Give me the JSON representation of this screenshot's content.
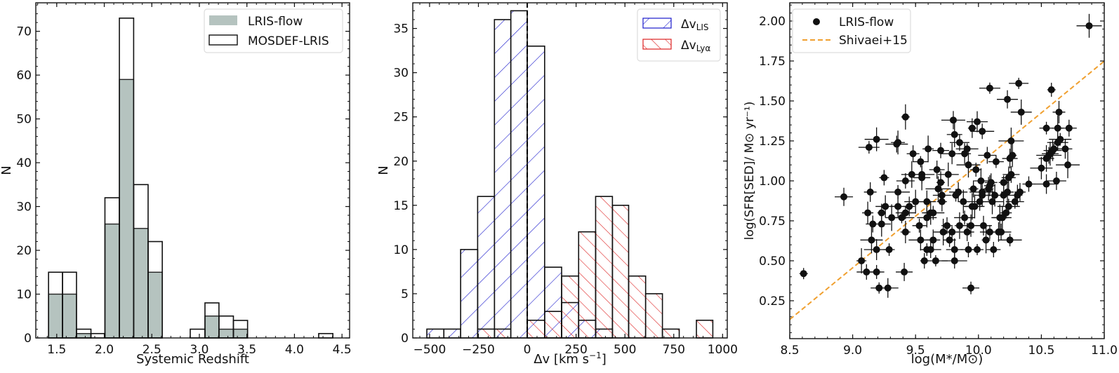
{
  "figure": {
    "panels": [
      "redshift-histogram",
      "velocity-histogram",
      "sfr-mass-scatter"
    ]
  },
  "chart_data": [
    {
      "id": "redshift-histogram",
      "type": "bar",
      "subtype": "histogram",
      "title": "",
      "xlabel": "Systemic Redshift",
      "ylabel": "N",
      "xlim": [
        1.28,
        4.58
      ],
      "ylim": [
        0,
        76.5
      ],
      "xticks": [
        1.5,
        2.0,
        2.5,
        3.0,
        3.5,
        4.0,
        4.5
      ],
      "xtick_labels": [
        "1.5",
        "2.0",
        "2.5",
        "3.0",
        "3.5",
        "4.0",
        "4.5"
      ],
      "yticks": [
        0,
        10,
        20,
        30,
        40,
        50,
        60,
        70
      ],
      "ytick_labels": [
        "0",
        "10",
        "20",
        "30",
        "40",
        "50",
        "60",
        "70"
      ],
      "legend": {
        "position": "upper right",
        "entries": [
          "LRIS-flow",
          "MOSDEF-LRIS"
        ]
      },
      "grid": false,
      "series": [
        {
          "name": "LRIS-flow",
          "style": "filled",
          "color": "#b5c3bf",
          "bins": [
            {
              "x0": 1.414,
              "x1": 1.561,
              "n": 10
            },
            {
              "x0": 1.561,
              "x1": 1.708,
              "n": 10
            },
            {
              "x0": 1.708,
              "x1": 1.86,
              "n": 1
            },
            {
              "x0": 1.86,
              "x1": 2.007,
              "n": 0
            },
            {
              "x0": 2.007,
              "x1": 2.159,
              "n": 26
            },
            {
              "x0": 2.159,
              "x1": 2.309,
              "n": 59
            },
            {
              "x0": 2.309,
              "x1": 2.461,
              "n": 25
            },
            {
              "x0": 2.461,
              "x1": 2.61,
              "n": 15
            },
            {
              "x0": 3.059,
              "x1": 3.206,
              "n": 5
            },
            {
              "x0": 3.206,
              "x1": 3.358,
              "n": 2
            },
            {
              "x0": 3.358,
              "x1": 3.507,
              "n": 2
            }
          ]
        },
        {
          "name": "MOSDEF-LRIS",
          "style": "outline",
          "color": "#000000",
          "bins": [
            {
              "x0": 1.414,
              "x1": 1.561,
              "n": 15
            },
            {
              "x0": 1.561,
              "x1": 1.708,
              "n": 15
            },
            {
              "x0": 1.708,
              "x1": 1.86,
              "n": 2
            },
            {
              "x0": 1.86,
              "x1": 2.007,
              "n": 1
            },
            {
              "x0": 2.007,
              "x1": 2.159,
              "n": 32
            },
            {
              "x0": 2.159,
              "x1": 2.309,
              "n": 73
            },
            {
              "x0": 2.309,
              "x1": 2.461,
              "n": 35
            },
            {
              "x0": 2.461,
              "x1": 2.61,
              "n": 22
            },
            {
              "x0": 2.904,
              "x1": 3.059,
              "n": 2
            },
            {
              "x0": 3.059,
              "x1": 3.206,
              "n": 8
            },
            {
              "x0": 3.206,
              "x1": 3.358,
              "n": 5
            },
            {
              "x0": 3.358,
              "x1": 3.507,
              "n": 4
            },
            {
              "x0": 4.255,
              "x1": 4.404,
              "n": 1
            }
          ]
        }
      ]
    },
    {
      "id": "velocity-histogram",
      "type": "bar",
      "subtype": "histogram",
      "title": "",
      "xlabel": "Δv [km s⁻¹]",
      "ylabel": "N",
      "xlim": [
        -586,
        1024
      ],
      "ylim": [
        0,
        37.9
      ],
      "xticks": [
        -500,
        -250,
        0,
        250,
        500,
        750,
        1000
      ],
      "xtick_labels": [
        "−500",
        "−250",
        "0",
        "250",
        "500",
        "750",
        "1000"
      ],
      "yticks": [
        0,
        5,
        10,
        15,
        20,
        25,
        30,
        35
      ],
      "ytick_labels": [
        "0",
        "5",
        "10",
        "15",
        "20",
        "25",
        "30",
        "35"
      ],
      "vline": {
        "x": 0,
        "style": "dashed",
        "color": "#000000"
      },
      "legend": {
        "position": "upper right",
        "entries": [
          "ΔvLIS",
          "ΔvLyα"
        ]
      },
      "grid": false,
      "series": [
        {
          "name": "ΔvLIS",
          "label_main": "Δv",
          "label_sub": "LIS",
          "hatch": "\\",
          "color": "#1a1acc",
          "bins": [
            {
              "x0": -514,
              "x1": -427,
              "n": 1
            },
            {
              "x0": -427,
              "x1": -341,
              "n": 1
            },
            {
              "x0": -341,
              "x1": -254,
              "n": 10
            },
            {
              "x0": -254,
              "x1": -168,
              "n": 16
            },
            {
              "x0": -168,
              "x1": -84,
              "n": 36
            },
            {
              "x0": -84,
              "x1": 0,
              "n": 37
            },
            {
              "x0": 0,
              "x1": 89,
              "n": 33
            },
            {
              "x0": 89,
              "x1": 176,
              "n": 8
            },
            {
              "x0": 176,
              "x1": 263,
              "n": 4
            },
            {
              "x0": 263,
              "x1": 350,
              "n": 2
            },
            {
              "x0": 350,
              "x1": 436,
              "n": 1
            }
          ]
        },
        {
          "name": "ΔvLyα",
          "label_main": "Δv",
          "label_sub": "Lyα",
          "hatch": "/",
          "color": "#dd2222",
          "bins": [
            {
              "x0": -254,
              "x1": -168,
              "n": 1
            },
            {
              "x0": -168,
              "x1": -84,
              "n": 1
            },
            {
              "x0": 0,
              "x1": 89,
              "n": 2
            },
            {
              "x0": 89,
              "x1": 176,
              "n": 3
            },
            {
              "x0": 176,
              "x1": 263,
              "n": 7
            },
            {
              "x0": 263,
              "x1": 350,
              "n": 12
            },
            {
              "x0": 350,
              "x1": 436,
              "n": 16
            },
            {
              "x0": 436,
              "x1": 519,
              "n": 15
            },
            {
              "x0": 519,
              "x1": 606,
              "n": 7
            },
            {
              "x0": 606,
              "x1": 692,
              "n": 5
            },
            {
              "x0": 692,
              "x1": 778,
              "n": 1
            },
            {
              "x0": 866,
              "x1": 950,
              "n": 2
            }
          ]
        }
      ]
    },
    {
      "id": "sfr-mass-scatter",
      "type": "scatter",
      "title": "",
      "xlabel": "log(M*/M⊙)",
      "ylabel": "log(SFR[SED]/ M⊙ yr⁻¹)",
      "xlim": [
        8.5,
        11.0
      ],
      "ylim": [
        0.013,
        2.114
      ],
      "xticks": [
        8.5,
        9.0,
        9.5,
        10.0,
        10.5,
        11.0
      ],
      "xtick_labels": [
        "8.5",
        "9.0",
        "9.5",
        "10.0",
        "10.5",
        "11.0"
      ],
      "yticks": [
        0.25,
        0.5,
        0.75,
        1.0,
        1.25,
        1.5,
        1.75,
        2.0
      ],
      "ytick_labels": [
        "0.25",
        "0.50",
        "0.75",
        "1.00",
        "1.25",
        "1.50",
        "1.75",
        "2.00"
      ],
      "legend": {
        "position": "upper left",
        "entries": [
          "LRIS-flow",
          "Shivaei+15"
        ]
      },
      "grid": false,
      "lines": [
        {
          "name": "Shivaei+15",
          "style": "dashed",
          "color": "#f0a030",
          "x": [
            8.5,
            11.0
          ],
          "y": [
            0.133,
            1.749
          ]
        }
      ],
      "series": [
        {
          "name": "LRIS-flow",
          "marker": "circle",
          "color": "#111111",
          "x": [
            8.61,
            8.93,
            9.07,
            9.11,
            9.12,
            9.13,
            9.14,
            9.15,
            9.16,
            9.19,
            9.19,
            9.19,
            9.21,
            9.23,
            9.23,
            9.25,
            9.26,
            9.29,
            9.28,
            9.31,
            9.35,
            9.36,
            9.36,
            9.36,
            9.39,
            9.41,
            9.42,
            9.42,
            9.42,
            9.42,
            9.45,
            9.47,
            9.48,
            9.5,
            9.53,
            9.54,
            9.54,
            9.55,
            9.55,
            9.57,
            9.59,
            9.59,
            9.59,
            9.6,
            9.62,
            9.62,
            9.64,
            9.64,
            9.66,
            9.67,
            9.68,
            9.7,
            9.7,
            9.71,
            9.71,
            9.72,
            9.75,
            9.76,
            9.77,
            9.79,
            9.79,
            9.8,
            9.81,
            9.81,
            9.81,
            9.82,
            9.84,
            9.85,
            9.85,
            9.88,
            9.89,
            9.89,
            9.91,
            9.91,
            9.92,
            9.92,
            9.94,
            9.94,
            9.95,
            9.95,
            9.96,
            9.97,
            9.98,
            9.99,
            9.99,
            10.01,
            10.02,
            10.03,
            10.03,
            10.03,
            10.04,
            10.06,
            10.07,
            10.08,
            10.09,
            10.09,
            10.09,
            10.1,
            10.11,
            10.12,
            10.13,
            10.14,
            10.16,
            10.17,
            10.18,
            10.19,
            10.2,
            10.2,
            10.22,
            10.23,
            10.23,
            10.24,
            10.24,
            10.25,
            10.25,
            10.26,
            10.26,
            10.27,
            10.29,
            10.31,
            10.32,
            10.33,
            10.34,
            10.4,
            10.5,
            10.54,
            10.54,
            10.54,
            10.56,
            10.57,
            10.58,
            10.59,
            10.6,
            10.62,
            10.63,
            10.63,
            10.64,
            10.65,
            10.69,
            10.71,
            10.72,
            10.88
          ],
          "y": [
            0.42,
            0.9,
            0.5,
            0.43,
            0.8,
            1.21,
            0.93,
            0.63,
            0.73,
            1.26,
            0.43,
            0.57,
            0.33,
            0.8,
            0.73,
            1.02,
            0.84,
            0.57,
            0.33,
            0.77,
            1.23,
            1.24,
            0.93,
            0.84,
            0.77,
            0.43,
            1.4,
            1.0,
            0.68,
            0.8,
            0.84,
            1.04,
            1.17,
            0.87,
            0.72,
            0.63,
            1.12,
            1.04,
            1.02,
            0.5,
            0.87,
            0.57,
            0.77,
            1.2,
            0.57,
            0.8,
            0.8,
            0.63,
            0.5,
            1.07,
            0.95,
            1.19,
            0.99,
            0.91,
            0.87,
            0.68,
            0.72,
            1.04,
            0.63,
            1.17,
            0.68,
            1.38,
            1.29,
            0.5,
            0.57,
            0.91,
            0.93,
            0.72,
            1.24,
            0.87,
            0.77,
            1.17,
            1.2,
            0.68,
            1.1,
            0.57,
            0.72,
            0.33,
            1.33,
            0.84,
            0.95,
            0.84,
            1.07,
            1.37,
            0.57,
            0.87,
            1.0,
            1.31,
            0.91,
            0.93,
            0.72,
            0.63,
            1.16,
            0.95,
            0.68,
            0.97,
            1.58,
            0.99,
            0.87,
            0.57,
            0.91,
            1.12,
            0.68,
            0.77,
            0.68,
            0.77,
            0.99,
            0.91,
            0.8,
            1.51,
            0.93,
            0.84,
            1.02,
            0.63,
            1.14,
            1.25,
            1.04,
            1.16,
            0.87,
            0.91,
            1.61,
            0.93,
            1.43,
            0.98,
            1.08,
            1.33,
            0.98,
            1.14,
            1.16,
            1.17,
            1.57,
            1.19,
            1.2,
            1.0,
            1.33,
            1.24,
            1.43,
            1.26,
            1.2,
            1.1,
            1.33,
            1.97
          ]
        }
      ]
    }
  ]
}
